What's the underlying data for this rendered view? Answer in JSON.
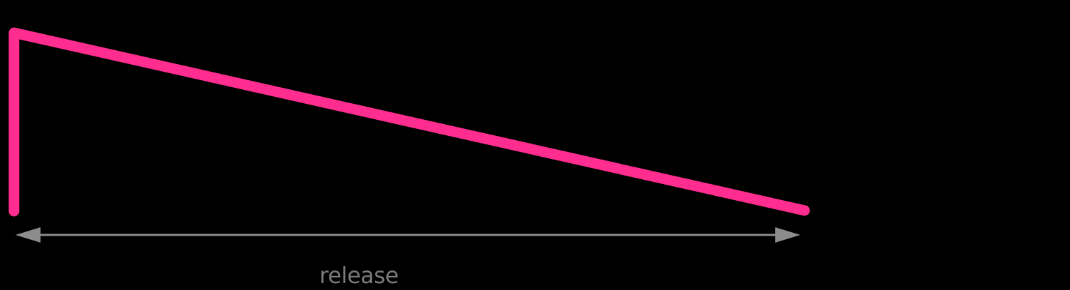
{
  "diagram": {
    "release_label": "release"
  },
  "colors": {
    "background": "#000000",
    "envelope": "#ff2d8f",
    "arrow": "#8c8c8c",
    "label": "#7a7a7a"
  }
}
